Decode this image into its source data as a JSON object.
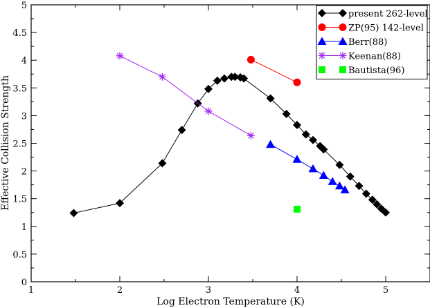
{
  "chart_data": {
    "type": "line",
    "xlabel": "Log Electron Temperature (K)",
    "ylabel": "Effective Collision Strength",
    "xlim": [
      1,
      5.5
    ],
    "ylim": [
      0,
      5
    ],
    "x_major_ticks": [
      1,
      2,
      3,
      4,
      5
    ],
    "x_tick_labels": [
      "1",
      "2",
      "3",
      "4",
      "5"
    ],
    "y_major_ticks": [
      0,
      0.5,
      1,
      1.5,
      2,
      2.5,
      3,
      3.5,
      4,
      4.5,
      5
    ],
    "y_tick_labels": [
      "0",
      "0.5",
      "1",
      "1.5",
      "2",
      "2.5",
      "3",
      "3.5",
      "4",
      "4.5",
      "5"
    ],
    "grid": false,
    "legend_position": "top-right",
    "series": [
      {
        "name": "present 262-level",
        "color": "#000000",
        "marker": "diamond",
        "line": true,
        "x": [
          1.48,
          2.0,
          2.48,
          2.7,
          2.88,
          3.0,
          3.1,
          3.18,
          3.26,
          3.3,
          3.36,
          3.4,
          3.7,
          3.88,
          4.0,
          4.1,
          4.18,
          4.26,
          4.3,
          4.48,
          4.6,
          4.7,
          4.78,
          4.85,
          4.9,
          4.95,
          5.0
        ],
        "y": [
          1.24,
          1.42,
          2.14,
          2.74,
          3.22,
          3.48,
          3.63,
          3.67,
          3.7,
          3.7,
          3.69,
          3.67,
          3.31,
          3.03,
          2.83,
          2.66,
          2.56,
          2.45,
          2.39,
          2.11,
          1.9,
          1.73,
          1.59,
          1.48,
          1.4,
          1.32,
          1.25
        ]
      },
      {
        "name": "ZP(95) 142-level",
        "color": "#ff0000",
        "marker": "circle",
        "line": true,
        "x": [
          3.48,
          4.0
        ],
        "y": [
          4.01,
          3.6
        ]
      },
      {
        "name": "Berr(88)",
        "color": "#0000ff",
        "marker": "triangle",
        "line": true,
        "x": [
          3.7,
          4.0,
          4.18,
          4.3,
          4.4,
          4.48,
          4.54
        ],
        "y": [
          2.48,
          2.21,
          2.04,
          1.92,
          1.81,
          1.73,
          1.66
        ]
      },
      {
        "name": "Keenan(88)",
        "color": "#a020f0",
        "marker": "star",
        "line": true,
        "x": [
          2.0,
          2.48,
          3.0,
          3.48
        ],
        "y": [
          4.08,
          3.7,
          3.08,
          2.64
        ]
      },
      {
        "name": "Bautista(96)",
        "color": "#00ff00",
        "marker": "square",
        "line": false,
        "x": [
          4.0
        ],
        "y": [
          1.31
        ]
      }
    ]
  }
}
